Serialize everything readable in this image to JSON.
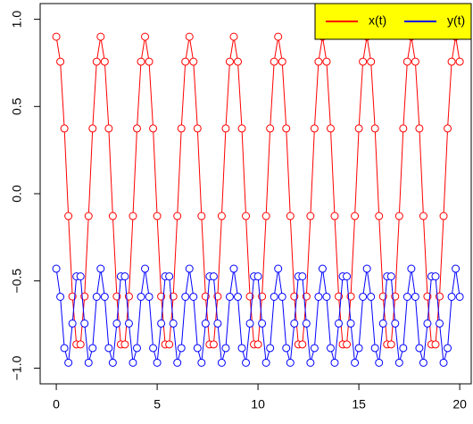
{
  "chart_data": {
    "type": "line",
    "x": [
      0,
      0.2,
      0.4,
      0.6,
      0.8,
      1,
      1.2,
      1.4,
      1.6,
      1.8,
      2,
      2.2,
      2.4,
      2.6,
      2.8,
      3,
      3.2,
      3.4,
      3.6,
      3.8,
      4,
      4.2,
      4.4,
      4.6,
      4.8,
      5,
      5.2,
      5.4,
      5.6,
      5.8,
      6,
      6.2,
      6.4,
      6.6,
      6.8,
      7,
      7.2,
      7.4,
      7.6,
      7.8,
      8,
      8.2,
      8.4,
      8.6,
      8.8,
      9,
      9.2,
      9.4,
      9.6,
      9.8,
      10,
      10.2,
      10.4,
      10.6,
      10.8,
      11,
      11.2,
      11.4,
      11.6,
      11.8,
      12,
      12.2,
      12.4,
      12.6,
      12.8,
      13,
      13.2,
      13.4,
      13.6,
      13.8,
      14,
      14.2,
      14.4,
      14.6,
      14.8,
      15,
      15.2,
      15.4,
      15.6,
      15.8,
      16,
      16.2,
      16.4,
      16.6,
      16.8,
      17,
      17.2,
      17.4,
      17.6,
      17.8,
      18,
      18.2,
      18.4,
      18.6,
      18.8,
      19,
      19.2,
      19.4,
      19.6,
      19.8,
      20
    ],
    "series": [
      {
        "name": "x(t)",
        "color": "#ff0000",
        "values": [
          0.9,
          0.757,
          0.374,
          -0.128,
          -0.589,
          -0.864,
          -0.864,
          -0.589,
          -0.128,
          0.374,
          0.757,
          0.9,
          0.757,
          0.374,
          -0.128,
          -0.589,
          -0.864,
          -0.864,
          -0.589,
          -0.128,
          0.374,
          0.757,
          0.9,
          0.757,
          0.374,
          -0.128,
          -0.589,
          -0.864,
          -0.864,
          -0.589,
          -0.128,
          0.374,
          0.757,
          0.9,
          0.757,
          0.374,
          -0.128,
          -0.589,
          -0.864,
          -0.864,
          -0.589,
          -0.128,
          0.374,
          0.757,
          0.9,
          0.757,
          0.374,
          -0.128,
          -0.589,
          -0.864,
          -0.864,
          -0.589,
          -0.128,
          0.374,
          0.757,
          0.9,
          0.757,
          0.374,
          -0.128,
          -0.589,
          -0.864,
          -0.864,
          -0.589,
          -0.128,
          0.374,
          0.757,
          0.9,
          0.757,
          0.374,
          -0.128,
          -0.589,
          -0.864,
          -0.864,
          -0.589,
          -0.128,
          0.374,
          0.757,
          0.9,
          0.757,
          0.374,
          -0.128,
          -0.589,
          -0.864,
          -0.864,
          -0.589,
          -0.128,
          0.374,
          0.757,
          0.9,
          0.757,
          0.374,
          -0.128,
          -0.589,
          -0.864,
          -0.864,
          -0.589,
          -0.128,
          0.374,
          0.757,
          0.9,
          0.757
        ]
      },
      {
        "name": "y(t)",
        "color": "#0000ff",
        "values": [
          -0.43,
          -0.591,
          -0.885,
          -0.969,
          -0.744,
          -0.474,
          -0.474,
          -0.744,
          -0.969,
          -0.885,
          -0.591,
          -0.43,
          -0.591,
          -0.885,
          -0.969,
          -0.744,
          -0.474,
          -0.474,
          -0.744,
          -0.969,
          -0.885,
          -0.591,
          -0.43,
          -0.591,
          -0.885,
          -0.969,
          -0.744,
          -0.474,
          -0.474,
          -0.744,
          -0.969,
          -0.885,
          -0.591,
          -0.43,
          -0.591,
          -0.885,
          -0.969,
          -0.744,
          -0.474,
          -0.474,
          -0.744,
          -0.969,
          -0.885,
          -0.591,
          -0.43,
          -0.591,
          -0.885,
          -0.969,
          -0.744,
          -0.474,
          -0.474,
          -0.744,
          -0.969,
          -0.885,
          -0.591,
          -0.43,
          -0.591,
          -0.885,
          -0.969,
          -0.744,
          -0.474,
          -0.474,
          -0.744,
          -0.969,
          -0.885,
          -0.591,
          -0.43,
          -0.591,
          -0.885,
          -0.969,
          -0.744,
          -0.474,
          -0.474,
          -0.744,
          -0.969,
          -0.885,
          -0.591,
          -0.43,
          -0.591,
          -0.885,
          -0.969,
          -0.744,
          -0.474,
          -0.474,
          -0.744,
          -0.969,
          -0.885,
          -0.591,
          -0.43,
          -0.591,
          -0.885,
          -0.969,
          -0.744,
          -0.474,
          -0.474,
          -0.744,
          -0.969,
          -0.885,
          -0.591,
          -0.43,
          -0.591
        ]
      }
    ],
    "xlim": [
      -0.8,
      20.57
    ],
    "ylim": [
      -1.09,
      1.09
    ],
    "xticks": [
      0,
      5,
      10,
      15,
      20
    ],
    "yticks": [
      {
        "value": -1,
        "label": "−1.0"
      },
      {
        "value": -0.5,
        "label": "−0.5"
      },
      {
        "value": 0,
        "label": "0.0"
      },
      {
        "value": 0.5,
        "label": "0.5"
      },
      {
        "value": 1,
        "label": "1.0"
      }
    ],
    "legend": "top-right",
    "legend_background": "#ffff00"
  }
}
